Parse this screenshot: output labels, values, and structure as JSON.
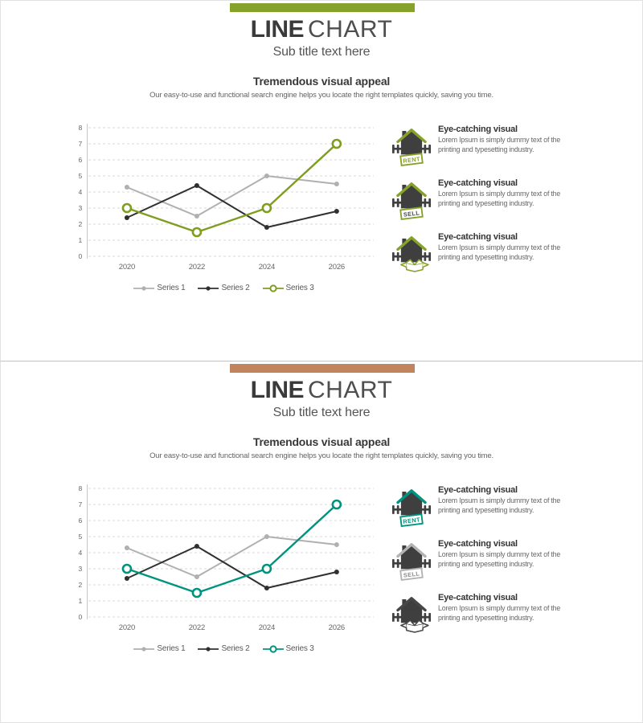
{
  "chart_data": [
    {
      "type": "line",
      "title": "",
      "xlabel": "",
      "ylabel": "",
      "categories": [
        "2020",
        "2022",
        "2024",
        "2026"
      ],
      "series": [
        {
          "name": "Series 1",
          "color": "#b0b0b0",
          "marker": "dot",
          "values": [
            4.3,
            2.5,
            5.0,
            4.5
          ]
        },
        {
          "name": "Series 2",
          "color": "#303030",
          "marker": "dot",
          "values": [
            2.4,
            4.4,
            1.8,
            2.8
          ]
        },
        {
          "name": "Series 3",
          "color": "#7f9d1f",
          "marker": "open-circle",
          "values": [
            3.0,
            1.5,
            3.0,
            7.0
          ]
        }
      ],
      "ylim": [
        0,
        8
      ],
      "ytick_step": 1,
      "grid": "dashed-horizontal",
      "legend_position": "bottom"
    },
    {
      "type": "line",
      "title": "",
      "xlabel": "",
      "ylabel": "",
      "categories": [
        "2020",
        "2022",
        "2024",
        "2026"
      ],
      "series": [
        {
          "name": "Series 1",
          "color": "#b0b0b0",
          "marker": "dot",
          "values": [
            4.3,
            2.5,
            5.0,
            4.5
          ]
        },
        {
          "name": "Series 2",
          "color": "#303030",
          "marker": "dot",
          "values": [
            2.4,
            4.4,
            1.8,
            2.8
          ]
        },
        {
          "name": "Series 3",
          "color": "#00947e",
          "marker": "open-circle",
          "values": [
            3.0,
            1.5,
            3.0,
            7.0
          ]
        }
      ],
      "ylim": [
        0,
        8
      ],
      "ytick_step": 1,
      "grid": "dashed-horizontal",
      "legend_position": "bottom"
    }
  ],
  "slides": [
    {
      "accent_bar_color": "#86a22b",
      "title_bold": "LINE",
      "title_light": "CHART",
      "subtitle": "Sub title text here",
      "heading": "Tremendous visual appeal",
      "description": "Our easy-to-use and functional search engine helps you locate the right templates quickly, saving you time.",
      "callouts": [
        {
          "icon": "house-rent-icon",
          "variant": "sign",
          "sign": "RENT",
          "accent": "#86a22b",
          "sign_text_color": "#86a22b",
          "title": "Eye-catching visual",
          "body": "Lorem Ipsum is simply dummy text of the printing and typesetting industry."
        },
        {
          "icon": "house-sell-icon",
          "variant": "sign",
          "sign": "SELL",
          "accent": "#86a22b",
          "sign_text_color": "#4a4a4a",
          "title": "Eye-catching visual",
          "body": "Lorem Ipsum is simply dummy text of the printing and typesetting industry."
        },
        {
          "icon": "house-open-box-icon",
          "variant": "box",
          "sign": "",
          "accent": "#86a22b",
          "sign_text_color": "#86a22b",
          "title": "Eye-catching visual",
          "body": "Lorem Ipsum is simply dummy text of the printing and typesetting industry."
        }
      ]
    },
    {
      "accent_bar_color": "#c2845c",
      "title_bold": "LINE",
      "title_light": "CHART",
      "subtitle": "Sub title text here",
      "heading": "Tremendous visual appeal",
      "description": "Our easy-to-use and functional search engine helps you locate the right templates quickly, saving you time.",
      "callouts": [
        {
          "icon": "house-rent-icon",
          "variant": "sign",
          "sign": "RENT",
          "accent": "#00947e",
          "sign_text_color": "#00947e",
          "title": "Eye-catching visual",
          "body": "Lorem Ipsum is simply dummy text of the printing and typesetting industry."
        },
        {
          "icon": "house-sell-icon",
          "variant": "sign",
          "sign": "SELL",
          "accent": "#b3b3b3",
          "sign_text_color": "#8a8a8a",
          "title": "Eye-catching visual",
          "body": "Lorem Ipsum is simply dummy text of the printing and typesetting industry."
        },
        {
          "icon": "house-open-box-icon",
          "variant": "box",
          "sign": "",
          "accent": "#474747",
          "sign_text_color": "#474747",
          "title": "Eye-catching visual",
          "body": "Lorem Ipsum is simply dummy text of the printing and typesetting industry."
        }
      ]
    }
  ]
}
